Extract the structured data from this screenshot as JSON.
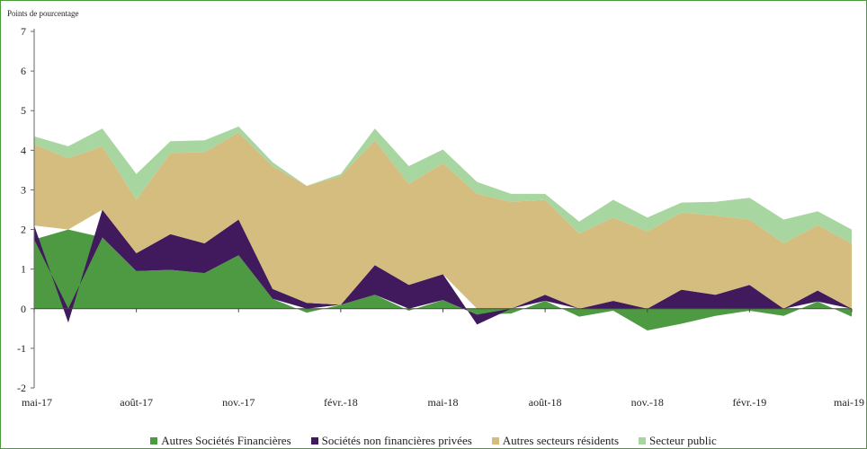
{
  "chart_data": {
    "type": "area",
    "ylabel": "Points de pourcentage",
    "ylim": [
      -2,
      7
    ],
    "yticks": [
      -2,
      -1,
      0,
      1,
      2,
      3,
      4,
      5,
      6,
      7
    ],
    "x_months": [
      "mai-17",
      "juin-17",
      "juil.-17",
      "août-17",
      "sept.-17",
      "oct.-17",
      "nov.-17",
      "déc.-17",
      "janv.-18",
      "févr.-18",
      "mars-18",
      "avr.-18",
      "mai-18",
      "juin-18",
      "juil.-18",
      "août-18",
      "sept.-18",
      "oct.-18",
      "nov.-18",
      "déc.-18",
      "janv.-19",
      "févr.-19",
      "mars-19",
      "avr.-19",
      "mai-19"
    ],
    "x_tick_labels": [
      "mai-17",
      "août-17",
      "nov.-17",
      "févr.-18",
      "mai-18",
      "août-18",
      "nov.-18",
      "févr.-19",
      "mai-19"
    ],
    "series": [
      {
        "name": "Autres Sociétés Financières",
        "color": "#4e9a43",
        "values": [
          1.75,
          2.0,
          1.8,
          0.95,
          0.98,
          0.9,
          1.35,
          0.25,
          -0.1,
          0.1,
          0.35,
          -0.05,
          0.22,
          -0.15,
          -0.12,
          0.2,
          -0.2,
          -0.05,
          -0.55,
          -0.38,
          -0.18,
          -0.05,
          -0.18,
          0.18,
          -0.2
        ]
      },
      {
        "name": "Sociétés non financières privées",
        "color": "#401a5c",
        "values": [
          0.35,
          -0.35,
          0.7,
          0.45,
          0.9,
          0.75,
          0.9,
          0.25,
          0.15,
          0.0,
          0.75,
          0.6,
          0.65,
          -0.25,
          0.0,
          0.15,
          0.0,
          0.2,
          0.0,
          0.48,
          0.35,
          0.6,
          0.0,
          0.28,
          0.0
        ]
      },
      {
        "name": "Autres secteurs résidents",
        "color": "#d4bd7e",
        "values": [
          2.05,
          1.8,
          1.6,
          1.35,
          2.05,
          2.3,
          2.2,
          3.1,
          2.95,
          3.25,
          3.15,
          2.55,
          2.8,
          2.9,
          2.7,
          2.4,
          1.9,
          2.1,
          1.95,
          1.95,
          2.0,
          1.65,
          1.65,
          1.65,
          1.65
        ]
      },
      {
        "name": "Secteur public",
        "color": "#a8d6a0",
        "values": [
          0.2,
          0.3,
          0.45,
          0.65,
          0.3,
          0.3,
          0.15,
          0.1,
          0.0,
          0.05,
          0.3,
          0.45,
          0.35,
          0.3,
          0.2,
          0.15,
          0.3,
          0.45,
          0.35,
          0.25,
          0.35,
          0.55,
          0.6,
          0.35,
          0.35
        ]
      }
    ],
    "legend_position": "bottom",
    "grid": false
  }
}
